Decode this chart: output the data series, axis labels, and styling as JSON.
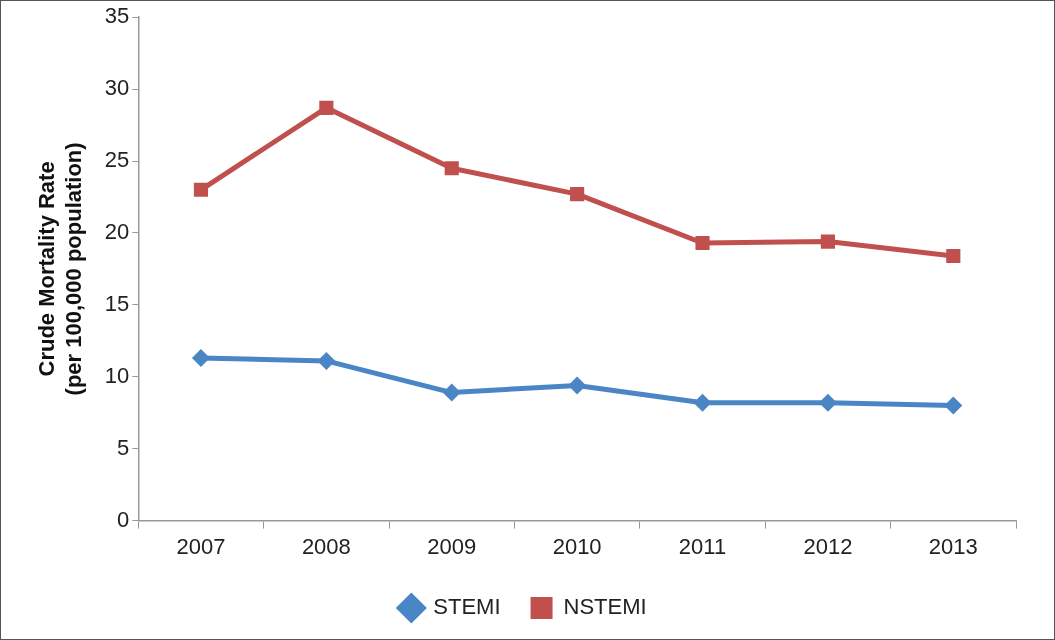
{
  "chart_data": {
    "type": "line",
    "ylabel": "Crude Mortality Rate\n(per 100,000 population)",
    "categories": [
      "2007",
      "2008",
      "2009",
      "2010",
      "2011",
      "2012",
      "2013"
    ],
    "series": [
      {
        "name": "STEMI",
        "color": "#4a86c5",
        "marker": "diamond",
        "values": [
          11.3,
          11.1,
          8.9,
          9.4,
          8.2,
          8.2,
          8.0
        ]
      },
      {
        "name": "NSTEMI",
        "color": "#c0504d",
        "marker": "square",
        "values": [
          23.0,
          28.7,
          24.5,
          22.7,
          19.3,
          19.4,
          18.4
        ]
      }
    ],
    "ylim": [
      0,
      35
    ],
    "yticks": [
      0,
      5,
      10,
      15,
      20,
      25,
      30,
      35
    ],
    "grid": false,
    "legend": "bottom",
    "line_style": "solid"
  }
}
